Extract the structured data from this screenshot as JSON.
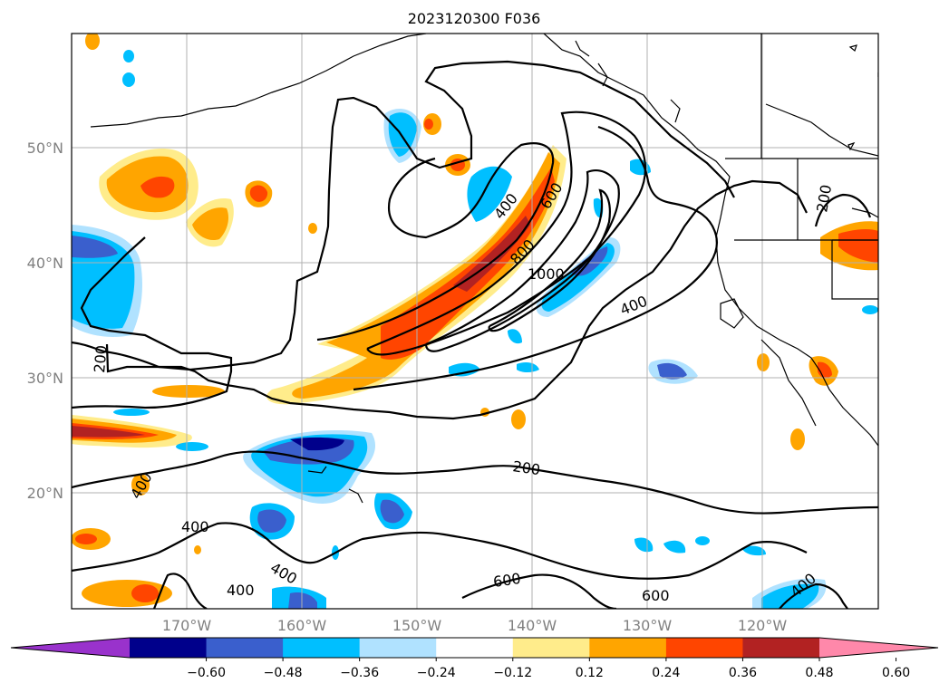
{
  "title": "2023120300 F036",
  "lat_labels": [
    "50°N",
    "40°N",
    "30°N",
    "20°N"
  ],
  "lon_labels": [
    "170°W",
    "160°W",
    "150°W",
    "140°W",
    "130°W",
    "120°W"
  ],
  "colorbar": {
    "ticks": [
      "−0.60",
      "−0.48",
      "−0.36",
      "−0.24",
      "−0.12",
      "0.12",
      "0.24",
      "0.36",
      "0.48",
      "0.60"
    ],
    "colors": [
      "#9932cc",
      "#00008b",
      "#3a5fcd",
      "#00bfff",
      "#b0e2ff",
      "#ffffff",
      "#ffec8b",
      "#ffa500",
      "#ff4500",
      "#b22222",
      "#ff88aa"
    ]
  },
  "contour_labels": [
    {
      "name": "contour-label-200-west",
      "text": "200"
    },
    {
      "name": "contour-label-400-nw",
      "text": "400"
    },
    {
      "name": "contour-label-600",
      "text": "600"
    },
    {
      "name": "contour-label-800",
      "text": "800"
    },
    {
      "name": "contour-label-1000",
      "text": "1000"
    },
    {
      "name": "contour-label-400-east",
      "text": "400"
    },
    {
      "name": "contour-label-200-coast",
      "text": "200"
    },
    {
      "name": "contour-label-200-south",
      "text": "200"
    },
    {
      "name": "contour-label-400-sw",
      "text": "400"
    },
    {
      "name": "contour-label-400-s1",
      "text": "400"
    },
    {
      "name": "contour-label-400-s2",
      "text": "400"
    },
    {
      "name": "contour-label-400-s3",
      "text": "400"
    },
    {
      "name": "contour-label-600-s1",
      "text": "600"
    },
    {
      "name": "contour-label-600-s2",
      "text": "600"
    },
    {
      "name": "contour-label-400-se",
      "text": "400"
    }
  ]
}
